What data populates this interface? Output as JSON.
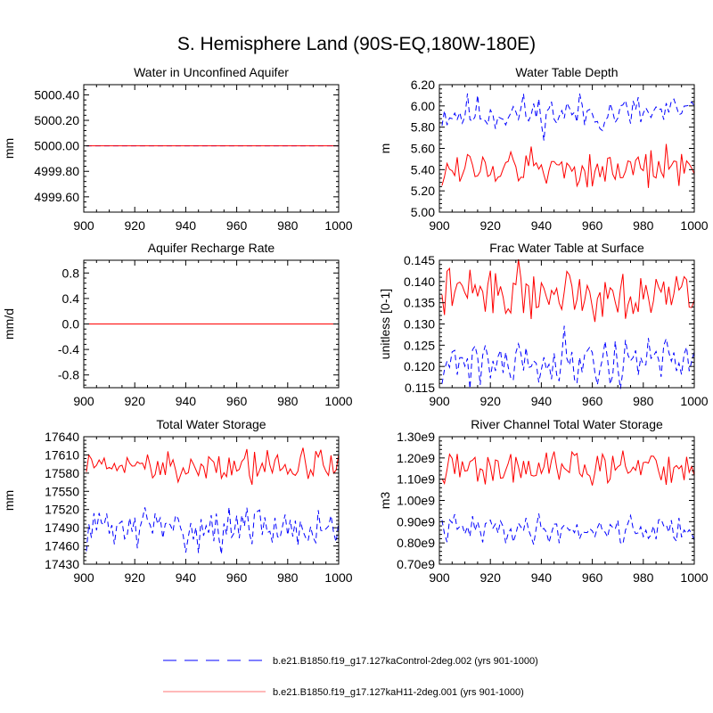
{
  "title": "S. Hemisphere Land (90S-EQ,180W-180E)",
  "colors": {
    "control": "#0000ff",
    "experiment": "#ff0000",
    "axis": "#000000"
  },
  "legend": {
    "items": [
      {
        "series": "control",
        "label": "b.e21.B1850.f19_g17.127kaControl-2deg.002 (yrs 901-1000)",
        "style": "dashed"
      },
      {
        "series": "experiment",
        "label": "b.e21.B1850.f19_g17.127kaH11-2deg.001 (yrs 901-1000)",
        "style": "solid"
      }
    ]
  },
  "chart_data": [
    {
      "type": "line",
      "id": "water-unconfined-aquifer",
      "title": "Water in Unconfined Aquifer",
      "xlabel": "",
      "ylabel": "mm",
      "xlim": [
        900,
        1000
      ],
      "ylim": [
        4999.48,
        5000.48
      ],
      "yticks": [
        4999.6,
        4999.8,
        5000.0,
        5000.2,
        5000.4
      ],
      "ytick_labels": [
        "4999.60",
        "4999.80",
        "5000.00",
        "5000.20",
        "5000.40"
      ],
      "xticks": [
        900,
        920,
        940,
        960,
        980,
        1000
      ],
      "series": [
        {
          "name": "control",
          "gen": {
            "mean": 5000.0,
            "amp": 0,
            "seed": 1
          }
        },
        {
          "name": "experiment",
          "gen": {
            "mean": 5000.0,
            "amp": 0,
            "seed": 2
          }
        }
      ]
    },
    {
      "type": "line",
      "id": "water-table-depth",
      "title": "Water Table Depth",
      "xlabel": "",
      "ylabel": "m",
      "xlim": [
        900,
        1000
      ],
      "ylim": [
        5.0,
        6.2
      ],
      "yticks": [
        5.0,
        5.2,
        5.4,
        5.6,
        5.8,
        6.0,
        6.2
      ],
      "ytick_labels": [
        "5.00",
        "5.20",
        "5.40",
        "5.60",
        "5.80",
        "6.00",
        "6.20"
      ],
      "xticks": [
        900,
        920,
        940,
        960,
        980,
        1000
      ],
      "series": [
        {
          "name": "control",
          "gen": {
            "mean": 5.93,
            "amp": 0.14,
            "seed": 11
          }
        },
        {
          "name": "experiment",
          "gen": {
            "mean": 5.41,
            "amp": 0.14,
            "seed": 12
          }
        }
      ]
    },
    {
      "type": "line",
      "id": "aquifer-recharge-rate",
      "title": "Aquifer Recharge Rate",
      "xlabel": "",
      "ylabel": "mm/d",
      "xlim": [
        900,
        1000
      ],
      "ylim": [
        -1.0,
        1.0
      ],
      "yticks": [
        -0.8,
        -0.4,
        0.0,
        0.4,
        0.8
      ],
      "ytick_labels": [
        "-0.8",
        "-0.4",
        "0.0",
        "0.4",
        "0.8"
      ],
      "xticks": [
        900,
        920,
        940,
        960,
        980,
        1000
      ],
      "series": [
        {
          "name": "control",
          "gen": {
            "mean": 0.0,
            "amp": 0,
            "seed": 3
          }
        },
        {
          "name": "experiment",
          "gen": {
            "mean": 0.0,
            "amp": 0,
            "seed": 4
          }
        }
      ]
    },
    {
      "type": "line",
      "id": "frac-water-table-surface",
      "title": "Frac Water Table at Surface",
      "xlabel": "",
      "ylabel": "unitless [0-1]",
      "xlim": [
        900,
        1000
      ],
      "ylim": [
        0.115,
        0.145
      ],
      "yticks": [
        0.115,
        0.12,
        0.125,
        0.13,
        0.135,
        0.14,
        0.145
      ],
      "ytick_labels": [
        "0.115",
        "0.120",
        "0.125",
        "0.130",
        "0.135",
        "0.140",
        "0.145"
      ],
      "xticks": [
        900,
        920,
        940,
        960,
        980,
        1000
      ],
      "series": [
        {
          "name": "control",
          "gen": {
            "mean": 0.1215,
            "amp": 0.0048,
            "seed": 21
          }
        },
        {
          "name": "experiment",
          "gen": {
            "mean": 0.1375,
            "amp": 0.0045,
            "seed": 22
          }
        }
      ]
    },
    {
      "type": "line",
      "id": "total-water-storage",
      "title": "Total Water Storage",
      "xlabel": "",
      "ylabel": "mm",
      "xlim": [
        900,
        1000
      ],
      "ylim": [
        17430,
        17640
      ],
      "yticks": [
        17430,
        17460,
        17490,
        17520,
        17550,
        17580,
        17610,
        17640
      ],
      "ytick_labels": [
        "17430",
        "17460",
        "17490",
        "17520",
        "17550",
        "17580",
        "17610",
        "17640"
      ],
      "xticks": [
        900,
        920,
        940,
        960,
        980,
        1000
      ],
      "series": [
        {
          "name": "control",
          "gen": {
            "mean": 17490,
            "amp": 26,
            "seed": 31
          }
        },
        {
          "name": "experiment",
          "gen": {
            "mean": 17592,
            "amp": 22,
            "seed": 32
          }
        }
      ]
    },
    {
      "type": "line",
      "id": "river-channel-water-storage",
      "title": "River Channel Total Water Storage",
      "xlabel": "",
      "ylabel": "m3",
      "xlim": [
        900,
        1000
      ],
      "ylim": [
        0.7,
        1.3
      ],
      "yticks": [
        0.7,
        0.8,
        0.9,
        1.0,
        1.1,
        1.2,
        1.3
      ],
      "ytick_labels": [
        "0.70e9",
        "0.80e9",
        "0.90e9",
        "1.00e9",
        "1.10e9",
        "1.20e9",
        "1.30e9"
      ],
      "xticks": [
        900,
        920,
        940,
        960,
        980,
        1000
      ],
      "series": [
        {
          "name": "control",
          "gen": {
            "mean": 0.865,
            "amp": 0.05,
            "seed": 41
          }
        },
        {
          "name": "experiment",
          "gen": {
            "mean": 1.15,
            "amp": 0.06,
            "seed": 42
          }
        }
      ]
    }
  ]
}
